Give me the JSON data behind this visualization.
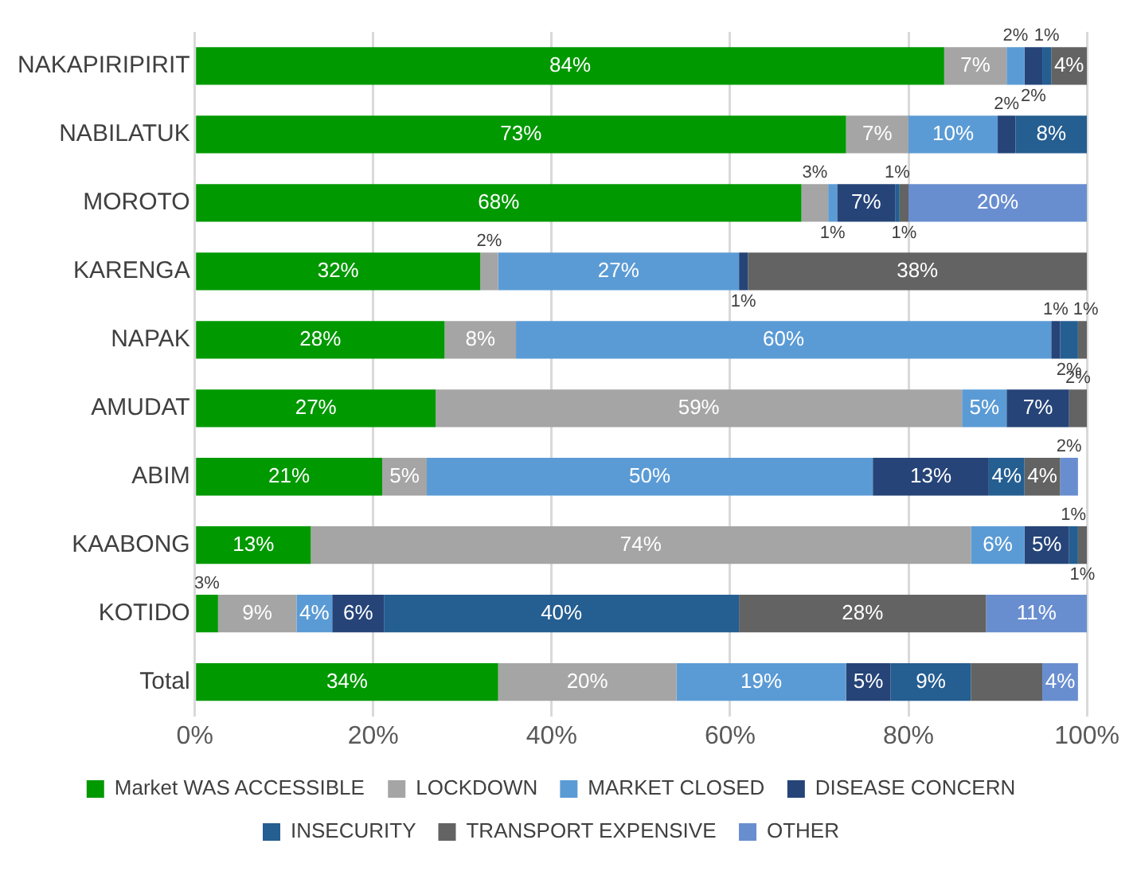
{
  "chart_data": {
    "type": "bar",
    "orientation": "horizontal",
    "stacked": true,
    "categories": [
      "NAKAPIRIPIRIT",
      "NABILATUK",
      "MOROTO",
      "KARENGA",
      "NAPAK",
      "AMUDAT",
      "ABIM",
      "KAABONG",
      "KOTIDO",
      "Total"
    ],
    "series": [
      {
        "name": "Market WAS ACCESSIBLE",
        "color": "#009900",
        "values": [
          84,
          73,
          68,
          32,
          28,
          27,
          21,
          13,
          2.6,
          34
        ],
        "value_labels": [
          "84%",
          "73%",
          "68%",
          "32%",
          "28%",
          "27%",
          "21%",
          "13%",
          "3%",
          "34%"
        ]
      },
      {
        "name": "LOCKDOWN",
        "color": "#a5a5a5",
        "values": [
          7,
          7,
          3,
          2,
          8,
          59,
          5,
          74,
          8.8,
          20
        ],
        "value_labels": [
          "7%",
          "7%",
          "3%",
          "2%",
          "8%",
          "59%",
          "5%",
          "74%",
          "9%",
          "20%"
        ]
      },
      {
        "name": "MARKET CLOSED",
        "color": "#5b9bd5",
        "values": [
          2,
          10,
          1,
          27,
          60,
          5,
          50,
          6,
          4,
          19
        ],
        "value_labels": [
          "2%",
          "10%",
          "1%",
          "27%",
          "60%",
          "5%",
          "50%",
          "6%",
          "4%",
          "19%"
        ]
      },
      {
        "name": "DISEASE CONCERN",
        "color": "#264478",
        "values": [
          2,
          2,
          6.5,
          1,
          1,
          7,
          13,
          5,
          5.8,
          5
        ],
        "value_labels": [
          "2%",
          "2%",
          "7%",
          "1%",
          "1%",
          "7%",
          "13%",
          "5%",
          "6%",
          "5%"
        ]
      },
      {
        "name": "INSECURITY",
        "color": "#255e91",
        "values": [
          1,
          8,
          0.5,
          0,
          2,
          0,
          4,
          1,
          39.8,
          9
        ],
        "value_labels": [
          "1%",
          "8%",
          "1%",
          null,
          "2%",
          null,
          "4%",
          "1%",
          "40%",
          "9%"
        ]
      },
      {
        "name": "TRANSPORT EXPENSIVE",
        "color": "#636363",
        "values": [
          4,
          0,
          1,
          38,
          1,
          2,
          4,
          1,
          27.7,
          8
        ],
        "value_labels": [
          "4%",
          null,
          "1%",
          "38%",
          "1%",
          "2%",
          "4%",
          "1%",
          "28%",
          null
        ]
      },
      {
        "name": "OTHER",
        "color": "#698ed0",
        "values": [
          0,
          0,
          20,
          0,
          0,
          0,
          2,
          0,
          11.3,
          4
        ],
        "value_labels": [
          null,
          null,
          "20%",
          null,
          null,
          null,
          "2%",
          null,
          "11%",
          "4%"
        ]
      }
    ],
    "xlim": [
      0,
      100
    ],
    "xticks": [
      {
        "value": 0,
        "label": "0%"
      },
      {
        "value": 20,
        "label": "20%"
      },
      {
        "value": 40,
        "label": "40%"
      },
      {
        "value": 60,
        "label": "60%"
      },
      {
        "value": 80,
        "label": "80%"
      },
      {
        "value": 100,
        "label": "100%"
      }
    ],
    "grid": "x",
    "legend": "bottom"
  }
}
